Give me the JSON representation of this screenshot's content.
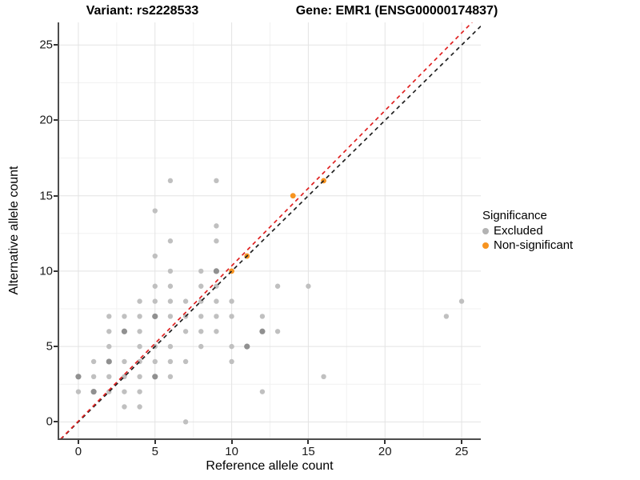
{
  "titles": {
    "variant": "Variant: rs2228533",
    "gene": "Gene: EMR1 (ENSG00000174837)"
  },
  "x_axis": {
    "label": "Reference allele count",
    "tick_values": [
      0,
      5,
      10,
      15,
      20,
      25
    ]
  },
  "y_axis": {
    "label": "Alternative allele count",
    "tick_values": [
      0,
      5,
      10,
      15,
      20,
      25
    ]
  },
  "legend": {
    "title": "Significance",
    "items": [
      {
        "label": "Excluded",
        "color": "#b3b3b3"
      },
      {
        "label": "Non-significant",
        "color": "#f79420"
      }
    ]
  },
  "colors": {
    "gray_point": "#c0c0c0",
    "gray_point_dark": "#909090",
    "orange_point": "#f79420",
    "identity_line": "#202020",
    "fit_line": "#e02020",
    "grid_major": "#e3e3e3",
    "grid_minor": "#f1f1f1"
  },
  "chart_data": {
    "type": "scatter",
    "title_left": "Variant: rs2228533",
    "title_right": "Gene: EMR1 (ENSG00000174837)",
    "xlabel": "Reference allele count",
    "ylabel": "Alternative allele count",
    "xlim": [
      -1.25,
      26.25
    ],
    "ylim": [
      -1.15,
      26.5
    ],
    "x_ticks": [
      0,
      5,
      10,
      15,
      20,
      25
    ],
    "y_ticks": [
      0,
      5,
      10,
      15,
      20,
      25
    ],
    "x_minor": [
      2.5,
      7.5,
      12.5,
      17.5,
      22.5
    ],
    "y_minor": [
      2.5,
      7.5,
      12.5,
      17.5,
      22.5
    ],
    "grid": "major+minor",
    "legend_position": "right",
    "series": [
      {
        "name": "Excluded",
        "points": [
          [
            7,
            0
          ],
          [
            3,
            1
          ],
          [
            4,
            1
          ],
          [
            0,
            2
          ],
          [
            1,
            2,
            1
          ],
          [
            2,
            2
          ],
          [
            3,
            2
          ],
          [
            4,
            2
          ],
          [
            12,
            2
          ],
          [
            0,
            3,
            1
          ],
          [
            1,
            3
          ],
          [
            2,
            3
          ],
          [
            3,
            3
          ],
          [
            4,
            3
          ],
          [
            5,
            3,
            1
          ],
          [
            6,
            3
          ],
          [
            16,
            3
          ],
          [
            1,
            4
          ],
          [
            2,
            4,
            1
          ],
          [
            3,
            4
          ],
          [
            4,
            4
          ],
          [
            5,
            4
          ],
          [
            6,
            4
          ],
          [
            7,
            4
          ],
          [
            10,
            4
          ],
          [
            2,
            5
          ],
          [
            4,
            5
          ],
          [
            5,
            5
          ],
          [
            6,
            5
          ],
          [
            8,
            5
          ],
          [
            10,
            5
          ],
          [
            11,
            5,
            1
          ],
          [
            2,
            6
          ],
          [
            3,
            6,
            1
          ],
          [
            4,
            6
          ],
          [
            7,
            6
          ],
          [
            8,
            6
          ],
          [
            9,
            6
          ],
          [
            12,
            6,
            1
          ],
          [
            13,
            6
          ],
          [
            2,
            7
          ],
          [
            3,
            7
          ],
          [
            4,
            7
          ],
          [
            5,
            7,
            1
          ],
          [
            6,
            7
          ],
          [
            7,
            7
          ],
          [
            8,
            7
          ],
          [
            9,
            7
          ],
          [
            10,
            7
          ],
          [
            12,
            7
          ],
          [
            24,
            7
          ],
          [
            4,
            8
          ],
          [
            5,
            8
          ],
          [
            6,
            8
          ],
          [
            7,
            8
          ],
          [
            8,
            8
          ],
          [
            9,
            8
          ],
          [
            10,
            8
          ],
          [
            25,
            8
          ],
          [
            5,
            9
          ],
          [
            6,
            9
          ],
          [
            8,
            9
          ],
          [
            9,
            9
          ],
          [
            13,
            9
          ],
          [
            15,
            9
          ],
          [
            6,
            10
          ],
          [
            8,
            10
          ],
          [
            9,
            10,
            1
          ],
          [
            5,
            11
          ],
          [
            6,
            12
          ],
          [
            9,
            12
          ],
          [
            9,
            13
          ],
          [
            5,
            14
          ],
          [
            6,
            16
          ],
          [
            9,
            16
          ]
        ]
      },
      {
        "name": "Non-significant",
        "points": [
          [
            10,
            10
          ],
          [
            11,
            11
          ],
          [
            14,
            15
          ],
          [
            16,
            16
          ]
        ]
      }
    ],
    "lines": [
      {
        "name": "identity-line",
        "slope": 1.0,
        "intercept": 0.0,
        "style": "dashed",
        "color_key": "identity_line"
      },
      {
        "name": "fit-line",
        "slope": 1.03,
        "intercept": 0.05,
        "style": "dashed",
        "color_key": "fit_line"
      }
    ]
  }
}
